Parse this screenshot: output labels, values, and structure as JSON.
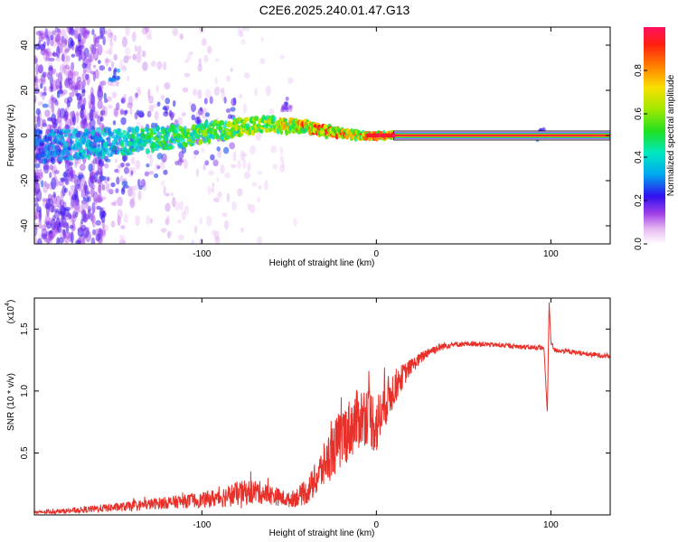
{
  "figure": {
    "title": "C2E6.2025.240.01.47.G13"
  },
  "chart_data": [
    {
      "type": "heatmap",
      "xlabel": "Height of straight line (km)",
      "ylabel": "Frequency (Hz)",
      "xlim": [
        -196,
        134
      ],
      "ylim": [
        -48,
        48
      ],
      "xticks": [
        -100,
        0,
        100
      ],
      "yticks": [
        -40,
        -20,
        0,
        20,
        40
      ],
      "colorbar": {
        "label": "Normalized spectral amplitude",
        "range": [
          0,
          1
        ],
        "ticks": [
          "0.0",
          "0.2",
          "0.4",
          "0.6",
          "0.8"
        ],
        "tick_values": [
          0.0,
          0.2,
          0.4,
          0.6,
          0.8
        ]
      },
      "ridge": {
        "description_points_x": [
          -196,
          -170,
          -150,
          -130,
          -110,
          -90,
          -75,
          -60,
          -50,
          -40,
          -30,
          -20,
          -10,
          0,
          10,
          134
        ],
        "description_points_y": [
          -5,
          -4,
          -3,
          -2,
          0,
          2,
          4,
          5,
          4,
          4,
          2,
          1,
          0,
          0,
          0,
          0
        ],
        "steady_from_x": 10,
        "steady_freq": 0,
        "steady_amplitude": 1.0
      },
      "features": [
        {
          "x": -150,
          "y": 27,
          "amplitude": 0.3
        },
        {
          "x": -52,
          "y": 14,
          "amplitude": 0.2
        },
        {
          "x": 95,
          "y": 1,
          "amplitude": 0.25
        }
      ]
    },
    {
      "type": "line",
      "xlabel": "Height of straight line (km)",
      "ylabel": "SNR (10 * v/v)",
      "scale_label": "(x10",
      "scale_exponent": "4",
      "scale_suffix": ")",
      "xlim": [
        -196,
        134
      ],
      "ylim": [
        0,
        1.75
      ],
      "xticks": [
        -100,
        0,
        100
      ],
      "yticks": [
        0.5,
        1.0,
        1.5
      ],
      "ytick_labels": [
        "0.5",
        "1.0",
        "1.5"
      ],
      "series": [
        {
          "name": "SNR",
          "color": "#e8302a",
          "x": [
            -196,
            -180,
            -160,
            -140,
            -120,
            -100,
            -90,
            -80,
            -70,
            -60,
            -50,
            -40,
            -35,
            -30,
            -25,
            -20,
            -15,
            -10,
            -5,
            0,
            5,
            10,
            15,
            20,
            25,
            30,
            40,
            50,
            60,
            70,
            80,
            90,
            96,
            98,
            99,
            100,
            102,
            110,
            120,
            134
          ],
          "values": [
            0.02,
            0.03,
            0.05,
            0.07,
            0.1,
            0.12,
            0.14,
            0.17,
            0.19,
            0.16,
            0.12,
            0.18,
            0.28,
            0.4,
            0.52,
            0.62,
            0.7,
            0.78,
            0.82,
            0.72,
            0.9,
            1.02,
            1.12,
            1.2,
            1.26,
            1.32,
            1.37,
            1.38,
            1.38,
            1.37,
            1.36,
            1.35,
            1.35,
            0.82,
            1.72,
            1.4,
            1.33,
            1.32,
            1.3,
            1.28
          ],
          "noise_amplitude": [
            0.01,
            0.02,
            0.03,
            0.04,
            0.05,
            0.06,
            0.08,
            0.1,
            0.1,
            0.08,
            0.06,
            0.1,
            0.14,
            0.18,
            0.22,
            0.25,
            0.25,
            0.25,
            0.25,
            0.25,
            0.2,
            0.15,
            0.1,
            0.06,
            0.05,
            0.04,
            0.03,
            0.02,
            0.02,
            0.02,
            0.02,
            0.02,
            0.02,
            0.0,
            0.0,
            0.02,
            0.02,
            0.02,
            0.02,
            0.02
          ]
        }
      ]
    }
  ]
}
